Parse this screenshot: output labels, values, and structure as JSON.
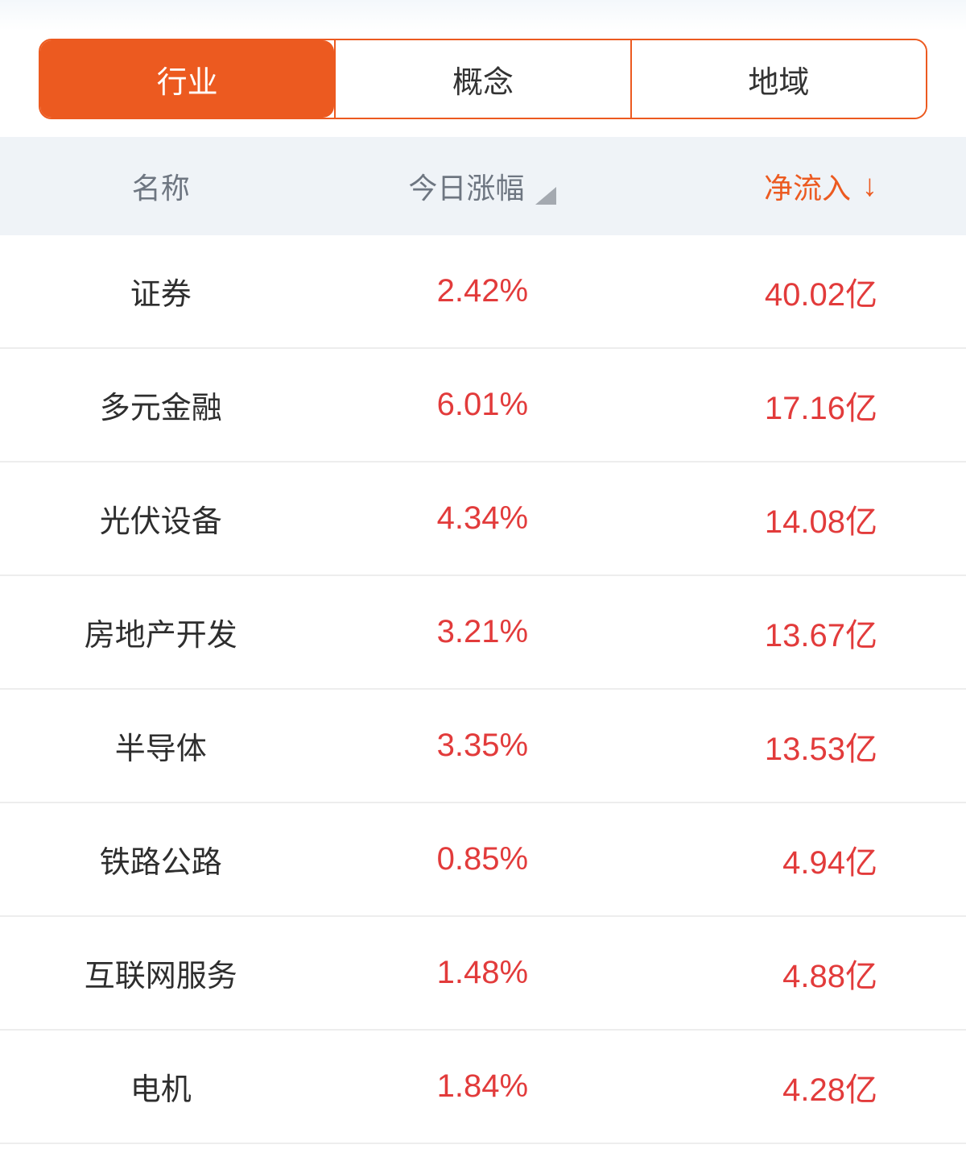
{
  "colors": {
    "accent_orange": "#ec5a20",
    "value_red": "#e23b3b",
    "header_bg": "#eff3f7",
    "header_text": "#6e7681",
    "row_divider": "#ededed"
  },
  "tabs": [
    {
      "label": "行业",
      "selected": true
    },
    {
      "label": "概念",
      "selected": false
    },
    {
      "label": "地域",
      "selected": false
    }
  ],
  "table": {
    "headers": {
      "name": "名称",
      "change": "今日涨幅",
      "inflow": "净流入",
      "inflow_sort_arrow": "↓"
    },
    "rows": [
      {
        "name": "证券",
        "change": "2.42%",
        "inflow": "40.02亿"
      },
      {
        "name": "多元金融",
        "change": "6.01%",
        "inflow": "17.16亿"
      },
      {
        "name": "光伏设备",
        "change": "4.34%",
        "inflow": "14.08亿"
      },
      {
        "name": "房地产开发",
        "change": "3.21%",
        "inflow": "13.67亿"
      },
      {
        "name": "半导体",
        "change": "3.35%",
        "inflow": "13.53亿"
      },
      {
        "name": "铁路公路",
        "change": "0.85%",
        "inflow": "4.94亿"
      },
      {
        "name": "互联网服务",
        "change": "1.48%",
        "inflow": "4.88亿"
      },
      {
        "name": "电机",
        "change": "1.84%",
        "inflow": "4.28亿"
      }
    ]
  }
}
